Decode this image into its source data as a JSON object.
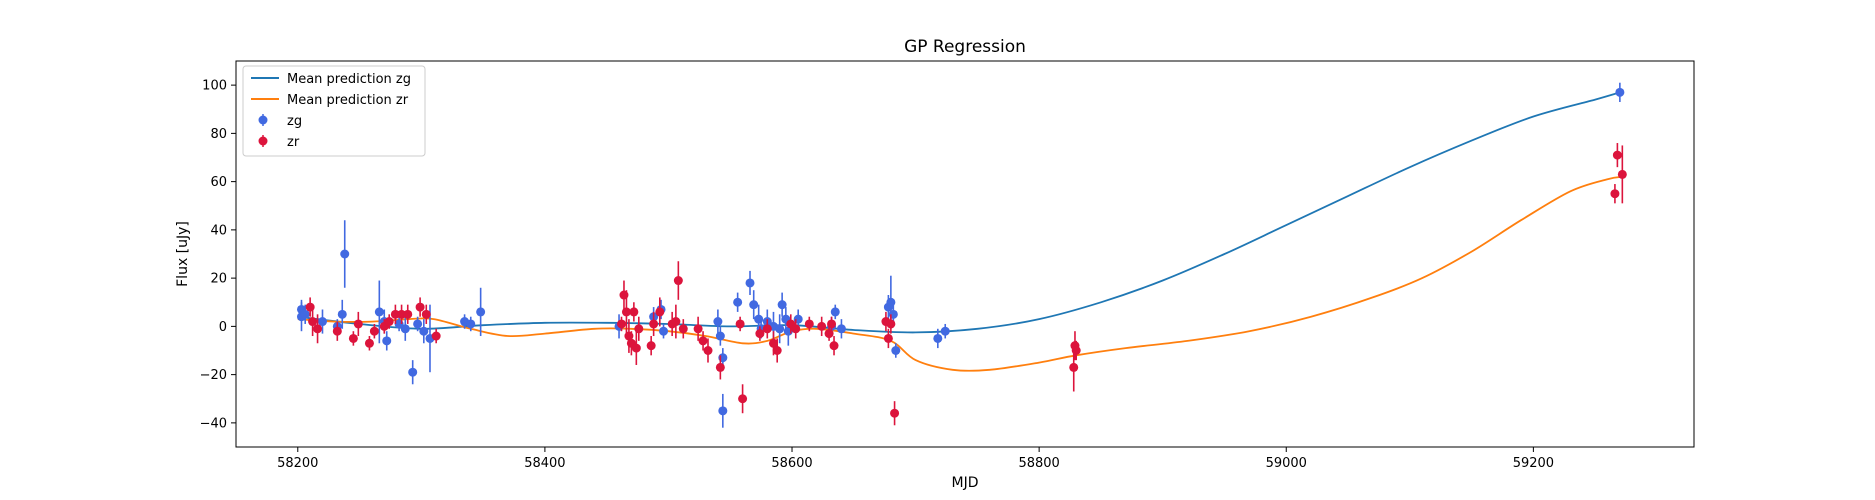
{
  "chart_data": {
    "type": "scatter",
    "title": "GP Regression",
    "xlabel": "MJD",
    "ylabel": "Flux [uJy]",
    "xlim": [
      58150,
      59330
    ],
    "ylim": [
      -50,
      110
    ],
    "xticks": [
      58200,
      58400,
      58600,
      58800,
      59000,
      59200
    ],
    "yticks": [
      -40,
      -20,
      0,
      20,
      40,
      60,
      80,
      100
    ],
    "grid": false,
    "legend_position": "top-left",
    "legend": [
      "Mean prediction zg",
      "Mean prediction zr",
      "zg",
      "zr"
    ],
    "lines": [
      {
        "name": "Mean prediction zg",
        "color": "#1f77b4",
        "x": [
          58200,
          58250,
          58300,
          58350,
          58400,
          58450,
          58500,
          58550,
          58600,
          58650,
          58700,
          58750,
          58800,
          58850,
          58900,
          58950,
          59000,
          59050,
          59100,
          59150,
          59200,
          59250,
          59270
        ],
        "y": [
          4,
          1,
          -1,
          0.5,
          1.5,
          1.5,
          1,
          0,
          0.5,
          -1.5,
          -2.5,
          -1,
          3,
          10,
          19,
          30,
          42,
          54,
          66,
          77,
          87,
          94,
          97
        ]
      },
      {
        "name": "Mean prediction zr",
        "color": "#ff7f0e",
        "x": [
          58200,
          58230,
          58260,
          58290,
          58310,
          58340,
          58370,
          58400,
          58440,
          58470,
          58500,
          58530,
          58560,
          58580,
          58600,
          58620,
          58650,
          58680,
          58700,
          58730,
          58760,
          58800,
          58830,
          58870,
          58920,
          58970,
          59020,
          59070,
          59110,
          59150,
          59190,
          59230,
          59260,
          59272
        ],
        "y": [
          3,
          2,
          2,
          3,
          3,
          -1,
          -4,
          -3,
          -1,
          -1,
          -2,
          -4,
          -7,
          -6,
          -2,
          -1,
          -3,
          -6,
          -14,
          -18,
          -18,
          -15,
          -12,
          -9,
          -6,
          -2,
          4,
          12,
          20,
          31,
          44,
          56,
          61,
          62
        ]
      }
    ],
    "series": [
      {
        "name": "zg",
        "color": "#4169e1",
        "points": [
          [
            58203,
            7,
            4
          ],
          [
            58203,
            4,
            6
          ],
          [
            58206,
            5,
            4
          ],
          [
            58220,
            2,
            5
          ],
          [
            58232,
            0,
            3
          ],
          [
            58236,
            5,
            6
          ],
          [
            58238,
            30,
            14
          ],
          [
            58266,
            6,
            13
          ],
          [
            58270,
            2,
            5
          ],
          [
            58272,
            -6,
            4
          ],
          [
            58282,
            1,
            3
          ],
          [
            58287,
            -1,
            5
          ],
          [
            58293,
            -19,
            5
          ],
          [
            58297,
            1,
            3
          ],
          [
            58302,
            -2,
            5
          ],
          [
            58307,
            -5,
            14
          ],
          [
            58335,
            2,
            3
          ],
          [
            58340,
            1,
            3
          ],
          [
            58348,
            6,
            10
          ],
          [
            58460,
            0,
            5
          ],
          [
            58488,
            4,
            4
          ],
          [
            58494,
            7,
            4
          ],
          [
            58496,
            -2,
            3
          ],
          [
            58540,
            2,
            5
          ],
          [
            58542,
            -4,
            4
          ],
          [
            58544,
            -13,
            4
          ],
          [
            58544,
            -35,
            7
          ],
          [
            58556,
            10,
            4
          ],
          [
            58566,
            18,
            5
          ],
          [
            58569,
            9,
            6
          ],
          [
            58573,
            3,
            6
          ],
          [
            58575,
            -1,
            4
          ],
          [
            58580,
            2,
            5
          ],
          [
            58585,
            0,
            6
          ],
          [
            58590,
            -1,
            6
          ],
          [
            58592,
            9,
            5
          ],
          [
            58595,
            3,
            5
          ],
          [
            58597,
            -2,
            6
          ],
          [
            58605,
            3,
            4
          ],
          [
            58632,
            0,
            4
          ],
          [
            58635,
            6,
            3
          ],
          [
            58640,
            -1,
            4
          ],
          [
            58678,
            8,
            5
          ],
          [
            58680,
            10,
            11
          ],
          [
            58682,
            5,
            5
          ],
          [
            58684,
            -10,
            3
          ],
          [
            58718,
            -5,
            4
          ],
          [
            58724,
            -2,
            3
          ],
          [
            59270,
            97,
            4
          ]
        ]
      },
      {
        "name": "zr",
        "color": "#dc143c",
        "points": [
          [
            58210,
            8,
            4
          ],
          [
            58212,
            2,
            6
          ],
          [
            58216,
            -1,
            6
          ],
          [
            58232,
            -2,
            4
          ],
          [
            58245,
            -5,
            3
          ],
          [
            58249,
            1,
            5
          ],
          [
            58258,
            -7,
            3
          ],
          [
            58262,
            -2,
            3
          ],
          [
            58270,
            0,
            3
          ],
          [
            58274,
            2,
            3
          ],
          [
            58279,
            5,
            4
          ],
          [
            58284,
            5,
            4
          ],
          [
            58289,
            5,
            4
          ],
          [
            58299,
            8,
            4
          ],
          [
            58304,
            5,
            4
          ],
          [
            58312,
            -4,
            3
          ],
          [
            58462,
            1,
            3
          ],
          [
            58464,
            13,
            6
          ],
          [
            58466,
            6,
            9
          ],
          [
            58468,
            -4,
            7
          ],
          [
            58470,
            -7,
            5
          ],
          [
            58472,
            6,
            4
          ],
          [
            58474,
            -9,
            7
          ],
          [
            58476,
            -1,
            5
          ],
          [
            58486,
            -8,
            4
          ],
          [
            58488,
            1,
            5
          ],
          [
            58493,
            6,
            6
          ],
          [
            58503,
            1,
            5
          ],
          [
            58506,
            2,
            7
          ],
          [
            58508,
            19,
            8
          ],
          [
            58512,
            -1,
            4
          ],
          [
            58524,
            -1,
            5
          ],
          [
            58528,
            -6,
            4
          ],
          [
            58532,
            -10,
            5
          ],
          [
            58542,
            -17,
            5
          ],
          [
            58558,
            1,
            3
          ],
          [
            58560,
            -30,
            6
          ],
          [
            58574,
            -3,
            3
          ],
          [
            58580,
            -1,
            4
          ],
          [
            58585,
            -7,
            5
          ],
          [
            58588,
            -10,
            5
          ],
          [
            58599,
            1,
            4
          ],
          [
            58603,
            -1,
            4
          ],
          [
            58614,
            1,
            3
          ],
          [
            58624,
            0,
            4
          ],
          [
            58630,
            -3,
            3
          ],
          [
            58632,
            1,
            3
          ],
          [
            58634,
            -8,
            4
          ],
          [
            58676,
            2,
            4
          ],
          [
            58678,
            -5,
            4
          ],
          [
            58680,
            1,
            4
          ],
          [
            58683,
            -36,
            5
          ],
          [
            58828,
            -17,
            10
          ],
          [
            58829,
            -8,
            6
          ],
          [
            58830,
            -10,
            4
          ],
          [
            59266,
            55,
            4
          ],
          [
            59268,
            71,
            5
          ],
          [
            59272,
            63,
            12
          ]
        ]
      }
    ]
  }
}
